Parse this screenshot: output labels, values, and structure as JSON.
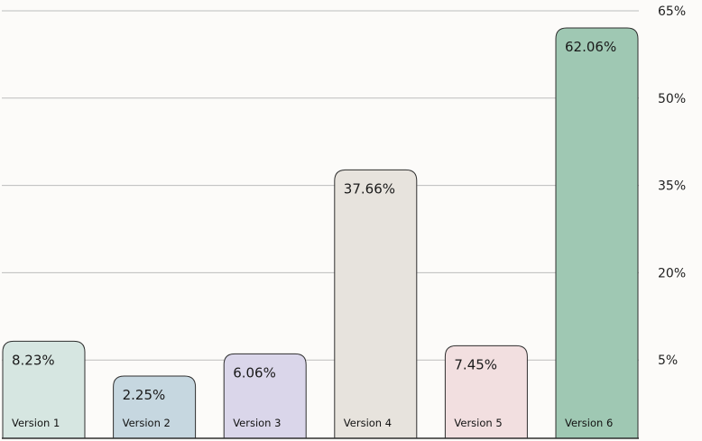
{
  "chart_data": {
    "type": "bar",
    "categories": [
      "Version 1",
      "Version 2",
      "Version 3",
      "Version 4",
      "Version 5",
      "Version 6"
    ],
    "values": [
      8.23,
      2.25,
      6.06,
      37.66,
      7.45,
      62.06
    ],
    "value_labels": [
      "8.23%",
      "2.25%",
      "6.06%",
      "37.66%",
      "7.45%",
      "62.06%"
    ],
    "colors": [
      "#d6e6e1",
      "#c6d7e0",
      "#dad6ea",
      "#e7e3dd",
      "#f2dfe0",
      "#9fc8b3"
    ],
    "y_ticks": [
      5,
      20,
      35,
      50,
      65
    ],
    "y_tick_labels": [
      "5%",
      "20%",
      "35%",
      "50%",
      "65%"
    ],
    "ylim": [
      -10,
      65
    ],
    "y_axis_position": "right",
    "grid": true,
    "title": "",
    "xlabel": "",
    "ylabel": ""
  }
}
